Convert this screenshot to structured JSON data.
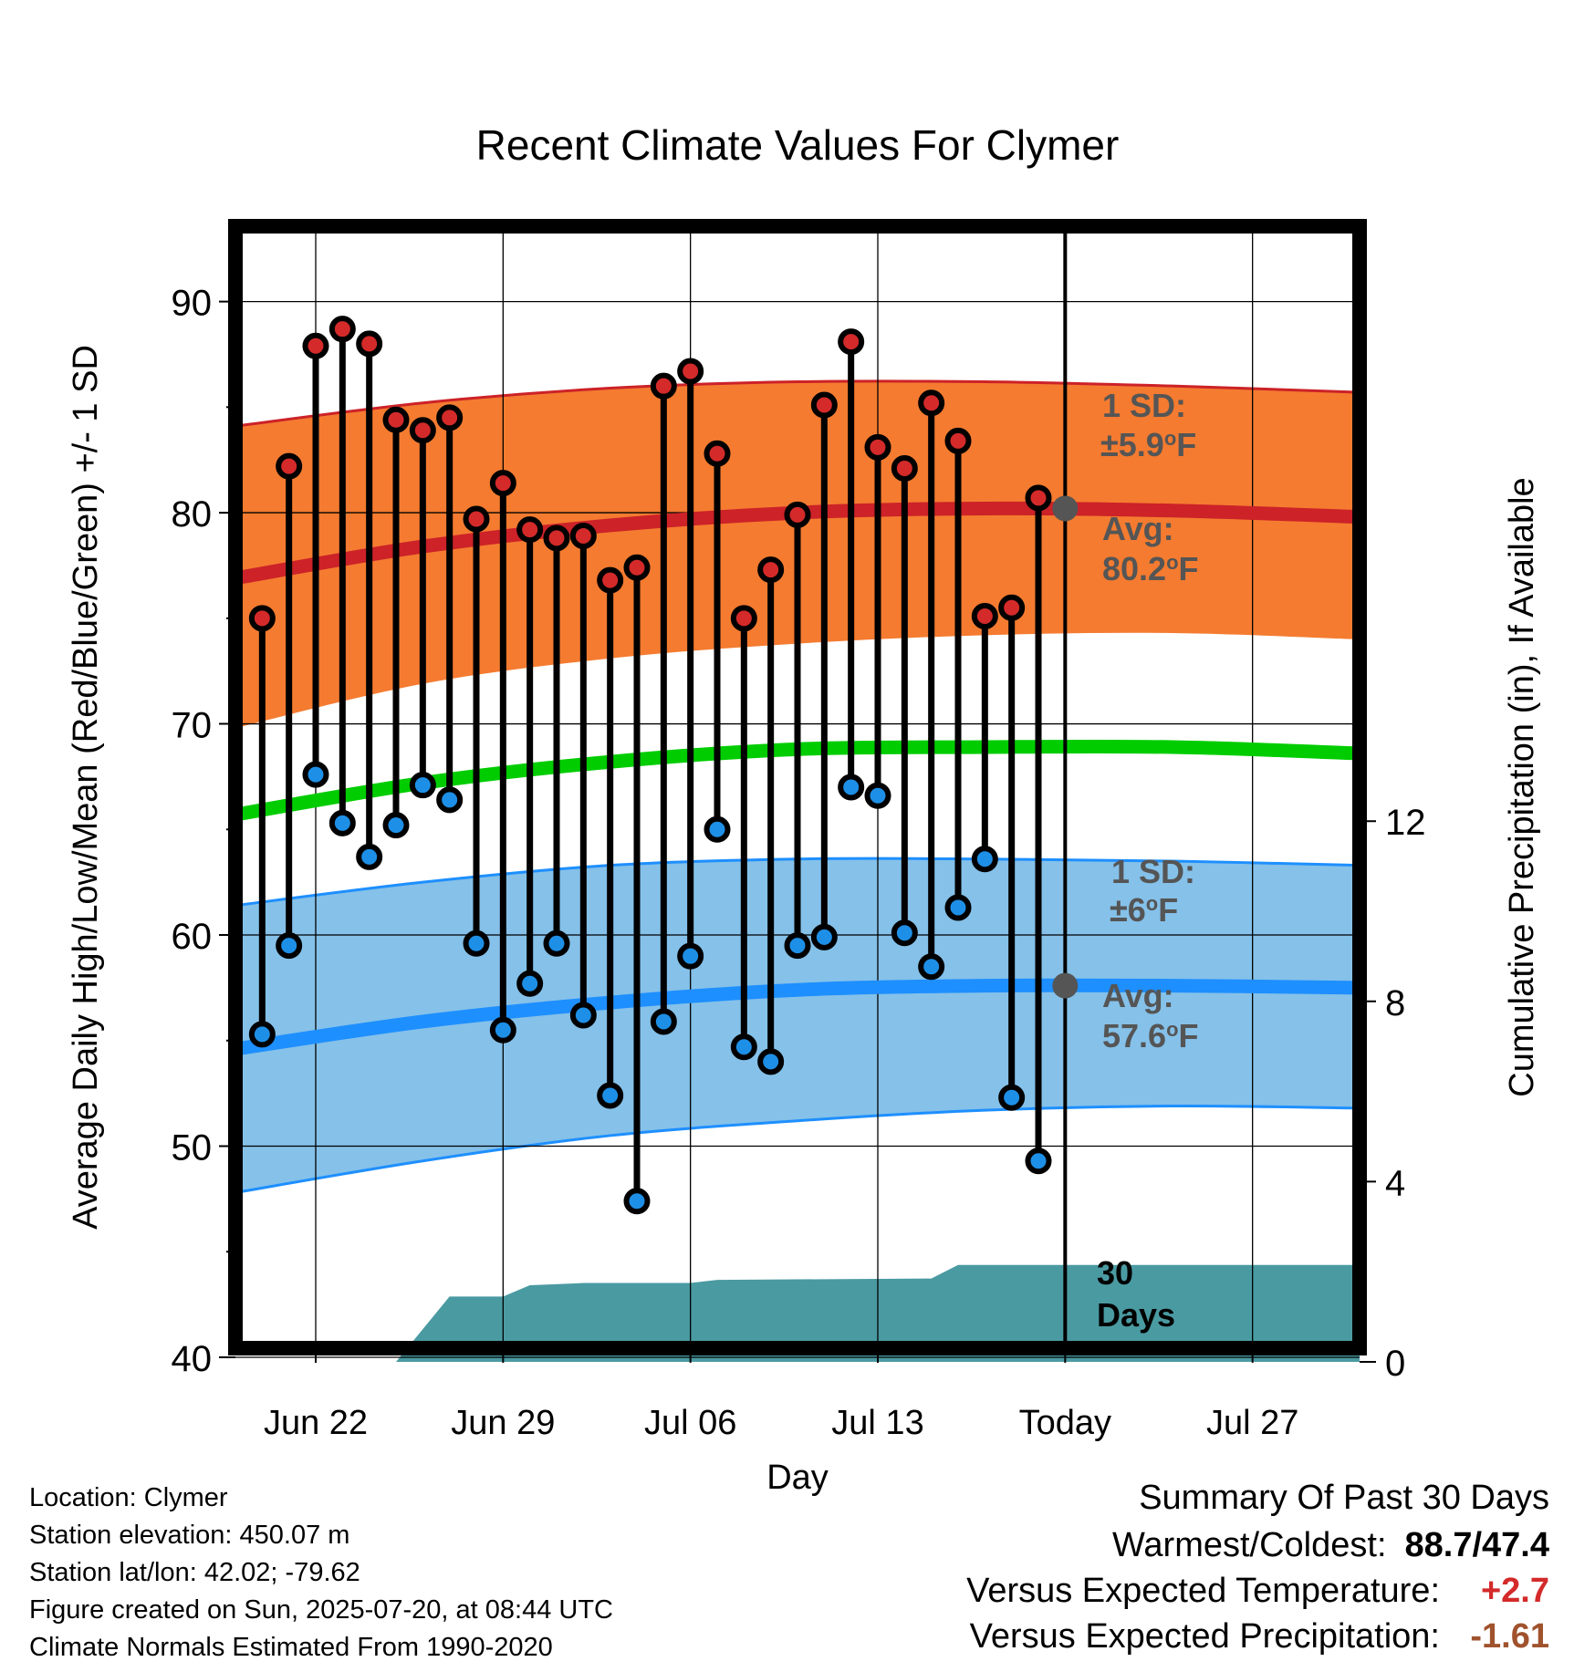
{
  "chart_data": {
    "type": "line",
    "title": "Recent Climate Values For Clymer",
    "xlabel": "Day",
    "ylabel": "Average Daily High/Low/Mean (Red/Blue/Green) +/- 1 SD",
    "y2label": "Cumulative Precipitation (in), If Available",
    "ylim": [
      40,
      94
    ],
    "y2lim": [
      0,
      16
    ],
    "xlim": [
      "2025-06-19",
      "2025-07-31"
    ],
    "x_ticks": [
      {
        "date": "2025-06-22",
        "label": "Jun 22"
      },
      {
        "date": "2025-06-29",
        "label": "Jun 29"
      },
      {
        "date": "2025-07-06",
        "label": "Jul 06"
      },
      {
        "date": "2025-07-13",
        "label": "Jul 13"
      },
      {
        "date": "2025-07-20",
        "label": "Today"
      },
      {
        "date": "2025-07-27",
        "label": "Jul 27"
      }
    ],
    "y_ticks": [
      40,
      50,
      60,
      70,
      80,
      90
    ],
    "y2_ticks": [
      0,
      4,
      8,
      12
    ],
    "today": "2025-07-20",
    "grid": true,
    "observed": {
      "dates": [
        "2025-06-20",
        "2025-06-21",
        "2025-06-22",
        "2025-06-23",
        "2025-06-24",
        "2025-06-25",
        "2025-06-26",
        "2025-06-27",
        "2025-06-28",
        "2025-06-29",
        "2025-06-30",
        "2025-07-01",
        "2025-07-02",
        "2025-07-03",
        "2025-07-04",
        "2025-07-05",
        "2025-07-06",
        "2025-07-07",
        "2025-07-08",
        "2025-07-09",
        "2025-07-10",
        "2025-07-11",
        "2025-07-12",
        "2025-07-13",
        "2025-07-14",
        "2025-07-15",
        "2025-07-16",
        "2025-07-17",
        "2025-07-18",
        "2025-07-19"
      ],
      "highs": [
        75.0,
        82.2,
        87.9,
        88.7,
        88.0,
        84.4,
        83.9,
        84.5,
        79.7,
        81.4,
        79.2,
        78.8,
        78.9,
        76.8,
        77.4,
        86.0,
        86.7,
        82.8,
        75.0,
        77.3,
        79.9,
        85.1,
        88.1,
        83.1,
        82.1,
        85.2,
        83.4,
        75.1,
        75.5,
        80.7
      ],
      "lows": [
        55.3,
        59.5,
        67.6,
        65.3,
        63.7,
        65.2,
        67.1,
        66.4,
        59.6,
        55.5,
        57.7,
        59.6,
        56.2,
        52.4,
        47.4,
        55.9,
        59.0,
        65.0,
        54.7,
        54.0,
        59.5,
        59.9,
        67.0,
        66.6,
        60.1,
        58.5,
        61.3,
        63.6,
        52.3,
        49.3
      ]
    },
    "normals": {
      "dates": [
        "2025-06-19",
        "2025-06-26",
        "2025-07-03",
        "2025-07-10",
        "2025-07-17",
        "2025-07-24",
        "2025-07-31"
      ],
      "high_avg": [
        76.9,
        78.4,
        79.4,
        80.0,
        80.2,
        80.1,
        79.8
      ],
      "high_sd_upper": [
        84.1,
        85.2,
        85.9,
        86.2,
        86.2,
        86.0,
        85.7
      ],
      "high_sd_lower": [
        69.8,
        71.9,
        73.1,
        73.8,
        74.2,
        74.3,
        74.0
      ],
      "mean_avg": [
        65.7,
        67.2,
        68.2,
        68.8,
        68.9,
        68.9,
        68.6
      ],
      "low_avg": [
        54.6,
        55.9,
        56.8,
        57.4,
        57.6,
        57.6,
        57.5
      ],
      "low_sd_upper": [
        61.4,
        62.5,
        63.3,
        63.6,
        63.6,
        63.5,
        63.3
      ],
      "low_sd_lower": [
        47.8,
        49.3,
        50.5,
        51.2,
        51.7,
        51.9,
        51.8
      ]
    },
    "precip": {
      "dates": [
        "2025-06-19",
        "2025-06-25",
        "2025-06-27",
        "2025-06-29",
        "2025-06-30",
        "2025-07-02",
        "2025-07-06",
        "2025-07-07",
        "2025-07-15",
        "2025-07-16",
        "2025-07-31"
      ],
      "values": [
        0.0,
        0.0,
        1.45,
        1.45,
        1.7,
        1.75,
        1.75,
        1.82,
        1.85,
        2.15,
        2.15
      ]
    },
    "annotations": {
      "high_sd_label": "1 SD:",
      "high_sd_value": "±5.9",
      "high_avg_label": "Avg:",
      "high_avg_value": "80.2",
      "low_sd_label": "1 SD:",
      "low_sd_value": "±6",
      "low_avg_label": "Avg:",
      "low_avg_value": "57.6",
      "degree_symbol": "o",
      "unit": "F",
      "precip_days_line1": "30",
      "precip_days_line2": "Days"
    },
    "colors": {
      "high_band": "#f47b30",
      "high_line": "#cc2228",
      "high_dot": "#d42a2a",
      "low_band": "#85c1e9",
      "low_line": "#1e8fff",
      "low_dot": "#1e8fe6",
      "mean_line": "#00cc00",
      "precip": "#4a9aa2",
      "today_dot": "#555555",
      "annotation_text": "#555555"
    }
  },
  "info": {
    "location": "Location: Clymer",
    "elevation": "Station elevation: 450.07 m",
    "latlon": "Station lat/lon: 42.02; -79.62",
    "created": "Figure created on Sun, 2025-07-20, at 08:44 UTC",
    "normals": "Climate Normals Estimated From 1990-2020"
  },
  "summary": {
    "title": "Summary Of Past 30 Days",
    "warm_cold_label": "Warmest/Coldest:",
    "warm_cold_value": "88.7/47.4",
    "temp_label": "Versus Expected Temperature:",
    "temp_value": "+2.7",
    "temp_color": "#d42a2a",
    "precip_label": "Versus Expected Precipitation:",
    "precip_value": "-1.61",
    "precip_color": "#a0522d"
  }
}
